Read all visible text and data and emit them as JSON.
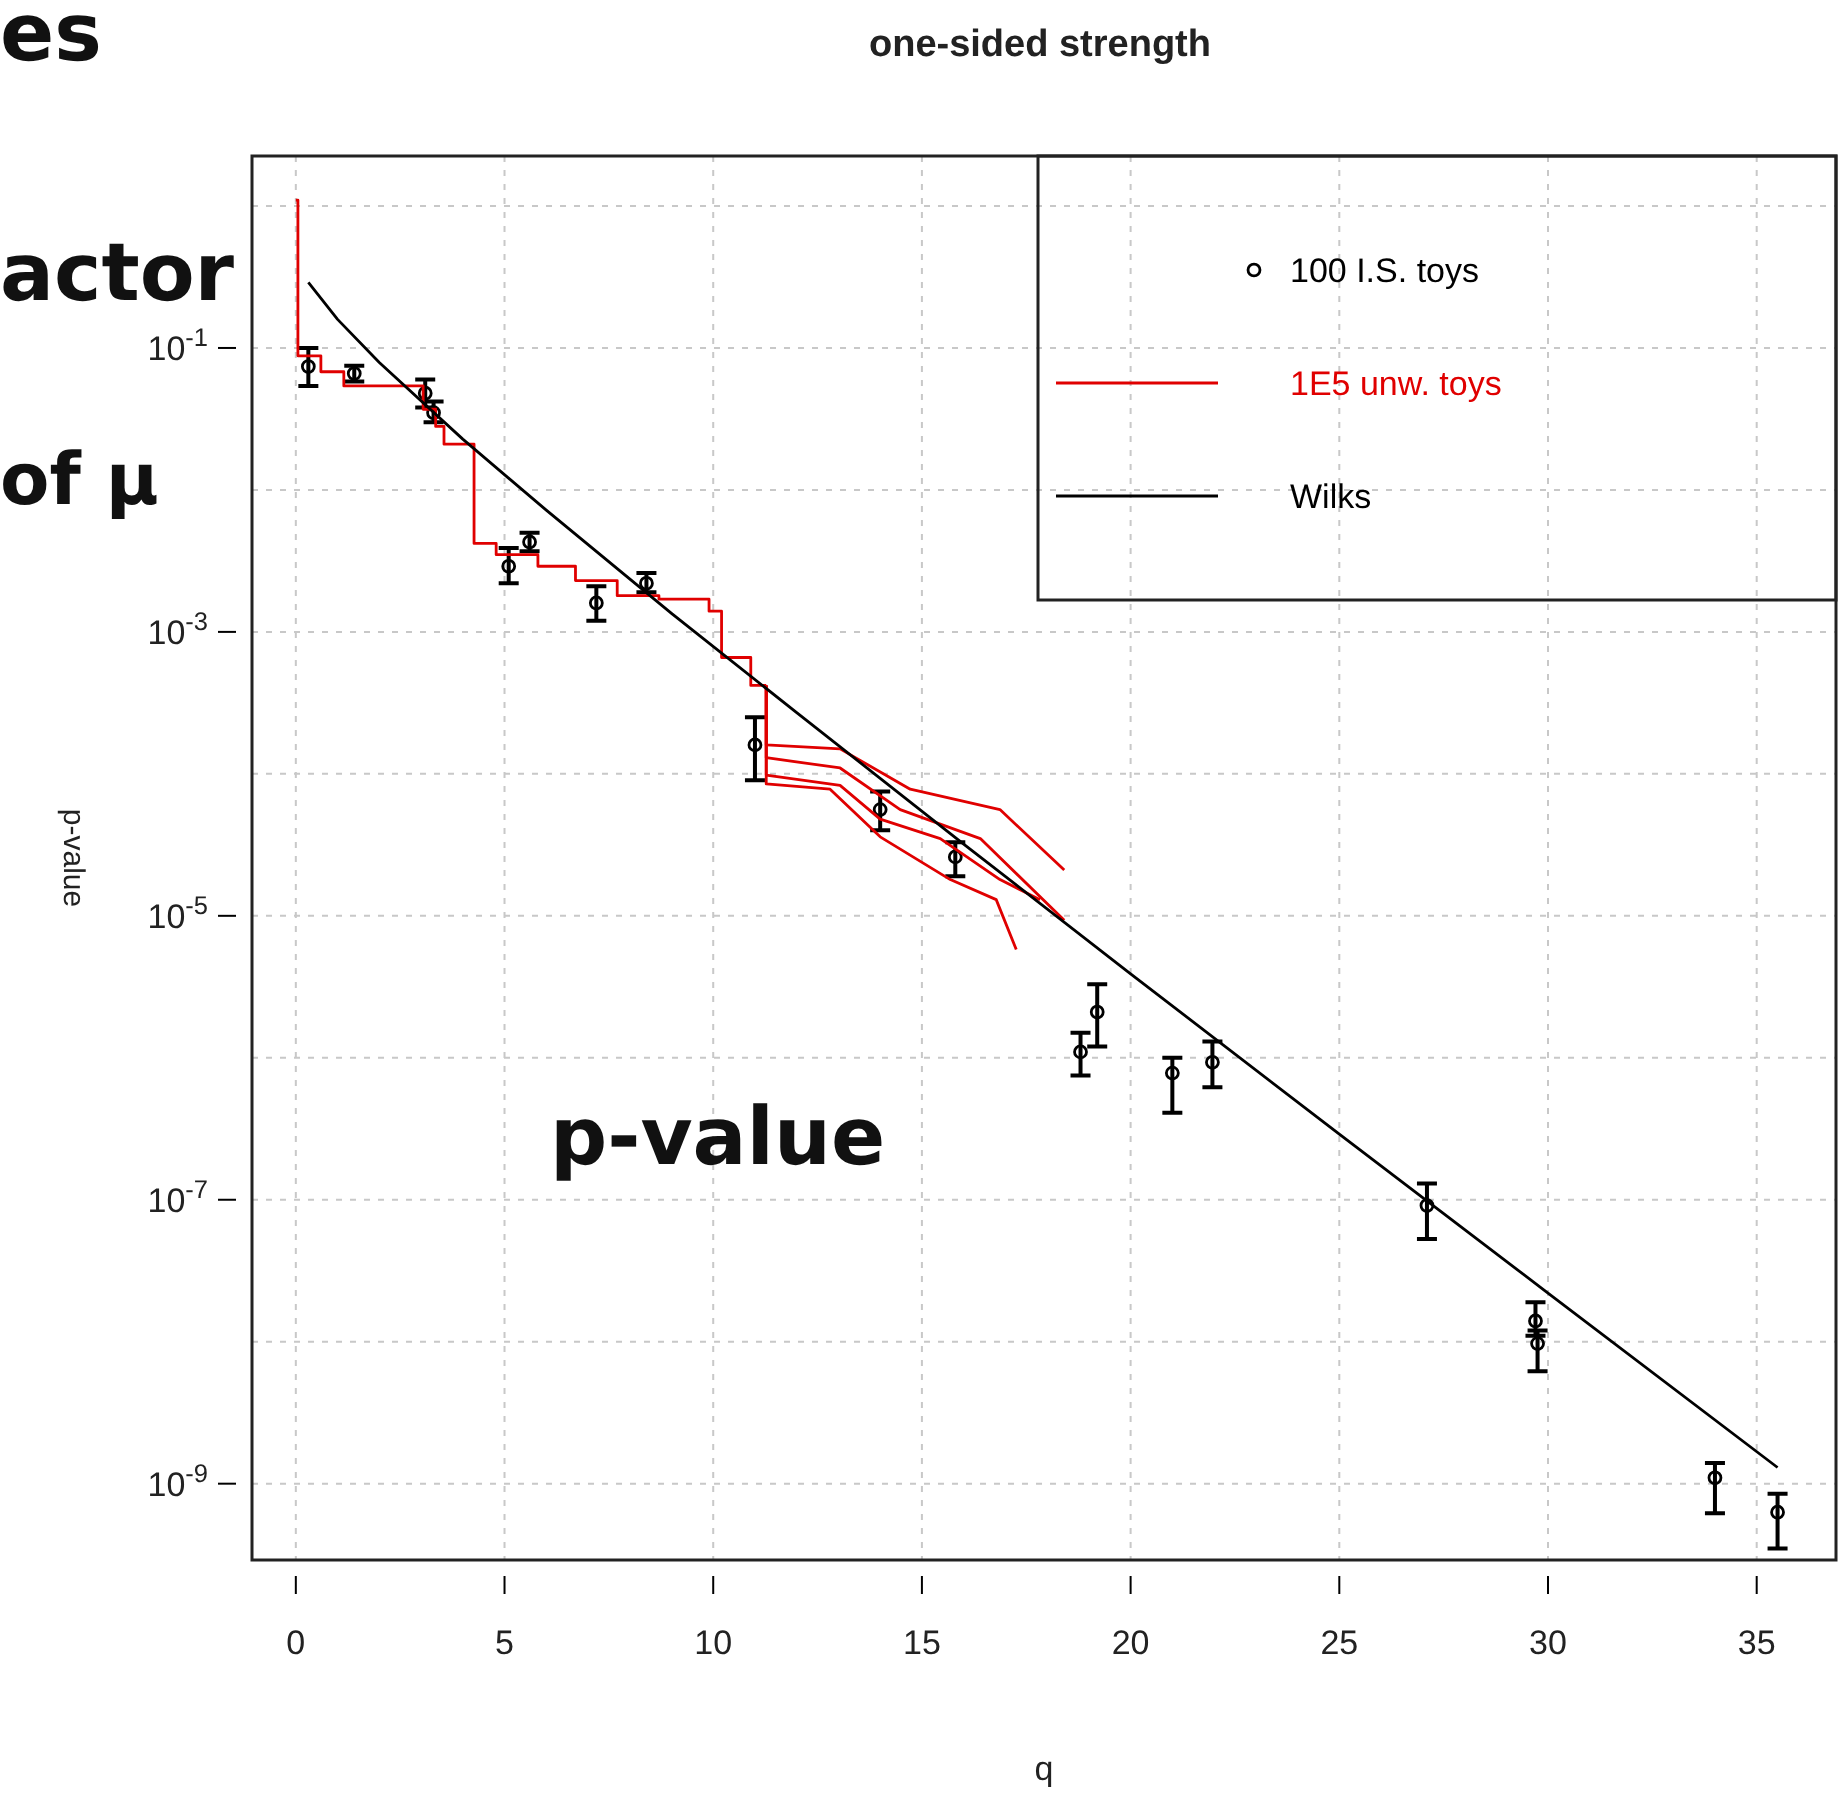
{
  "chart_data": {
    "type": "scatter",
    "title": "one-sided strength",
    "xlabel": "q",
    "ylabel": "p-value",
    "annotations": [
      "p-value",
      "es",
      "actor",
      "of μ"
    ],
    "log": "y",
    "grid": true,
    "legend": "top right",
    "xlim": [
      -1.05,
      36.9
    ],
    "ylim": [
      2.9e-10,
      2.25
    ],
    "xticks": [
      0,
      5,
      10,
      15,
      20,
      25,
      30,
      35
    ],
    "yticks": [
      {
        "value": 1,
        "label": null
      },
      {
        "value": 0.1,
        "label": "10$^{-1}$"
      },
      {
        "value": 0.01,
        "label": null
      },
      {
        "value": 0.001,
        "label": "10$^{-3}$"
      },
      {
        "value": 0.0001,
        "label": null
      },
      {
        "value": 1e-05,
        "label": "10$^{-5}$"
      },
      {
        "value": 1e-06,
        "label": null
      },
      {
        "value": 1e-07,
        "label": "10$^{-7}$"
      },
      {
        "value": 1e-08,
        "label": null
      },
      {
        "value": 1e-09,
        "label": "10$^{-9}$"
      }
    ],
    "series": [
      {
        "name": "100 I.S. toys",
        "marker": "circle",
        "color": "#000000",
        "x": [
          0.3,
          1.4,
          3.1,
          3.3,
          5.1,
          5.6,
          7.2,
          8.4,
          11.0,
          14.0,
          15.8,
          18.8,
          19.2,
          21.0,
          21.96,
          27.1,
          29.7,
          29.75,
          34.0,
          35.5
        ],
        "values": [
          0.074,
          0.066,
          0.048,
          0.035,
          0.0029,
          0.0043,
          0.0016,
          0.0022,
          0.00016,
          5.6e-05,
          2.6e-05,
          1.1e-06,
          2.1e-06,
          7.8e-07,
          9.3e-07,
          9.1e-08,
          1.4e-08,
          9.7e-09,
          1.1e-09,
          6.3e-10
        ],
        "errors": [
          [
            0.054,
            0.1
          ],
          [
            0.058,
            0.075
          ],
          [
            0.038,
            0.06
          ],
          [
            0.03,
            0.042
          ],
          [
            0.0022,
            0.0039
          ],
          [
            0.0037,
            0.005
          ],
          [
            0.0012,
            0.0021
          ],
          [
            0.0019,
            0.0026
          ],
          [
            9e-05,
            0.00025
          ],
          [
            4e-05,
            7.5e-05
          ],
          [
            1.9e-05,
            3.3e-05
          ],
          [
            7.5e-07,
            1.5e-06
          ],
          [
            1.2e-06,
            3.3e-06
          ],
          [
            4.1e-07,
            1e-06
          ],
          [
            6.2e-07,
            1.3e-06
          ],
          [
            5.3e-08,
            1.3e-07
          ],
          [
            1.1e-08,
            1.9e-08
          ],
          [
            6.2e-09,
            1.2e-08
          ],
          [
            6.2e-10,
            1.4e-09
          ],
          [
            3.5e-10,
            8.5e-10
          ]
        ]
      },
      {
        "name": "1E5 unw. toys",
        "type": "step",
        "color": "#e00000",
        "x": [
          0,
          0.05,
          0.6,
          1.15,
          3.05,
          3.35,
          3.55,
          4.27,
          4.8,
          5.8,
          6.7,
          7.7,
          8.7,
          9.9,
          10.2,
          10.9,
          11.27
        ],
        "values": [
          1.1,
          0.088,
          0.068,
          0.054,
          0.037,
          0.028,
          0.021,
          0.0042,
          0.0035,
          0.0029,
          0.0023,
          0.0018,
          0.0017,
          0.0014,
          0.00066,
          0.00042,
          0.00042
        ]
      },
      {
        "type": "line",
        "color": "#e00000",
        "x": [
          11.27,
          11.27,
          13.04,
          14.72,
          16.87,
          18.41
        ],
        "values": [
          0.00042,
          0.00016,
          0.00015,
          7.8e-05,
          5.6e-05,
          2.1e-05
        ]
      },
      {
        "type": "line",
        "color": "#e00000",
        "x": [
          11.27,
          11.27,
          13.04,
          14.48,
          16.4,
          18.41
        ],
        "values": [
          0.00042,
          0.00013,
          0.00011,
          5.6e-05,
          3.5e-05,
          9.3e-06
        ]
      },
      {
        "type": "line",
        "color": "#e00000",
        "x": [
          11.27,
          11.27,
          13.04,
          14.0,
          15.44,
          16.87,
          17.83
        ],
        "values": [
          0.00042,
          9.8e-05,
          8.3e-05,
          4.8e-05,
          3.5e-05,
          1.8e-05,
          1.3e-05
        ]
      },
      {
        "type": "line",
        "color": "#e00000",
        "x": [
          11.27,
          11.27,
          12.8,
          14.0,
          15.68,
          16.78,
          17.26
        ],
        "values": [
          0.00042,
          8.5e-05,
          7.8e-05,
          3.6e-05,
          1.8e-05,
          1.3e-05,
          5.8e-06
        ]
      },
      {
        "name": "Wilks",
        "type": "line",
        "color": "#000000",
        "x": [
          0.3,
          1,
          2,
          4,
          6,
          9,
          12,
          16,
          20,
          25,
          30,
          35.5
        ],
        "values": [
          0.29,
          0.159,
          0.079,
          0.0228,
          0.0072,
          0.00135,
          0.00027,
          3.2e-05,
          3.9e-06,
          2.9e-07,
          2.2e-08,
          1.3e-09
        ]
      }
    ]
  }
}
